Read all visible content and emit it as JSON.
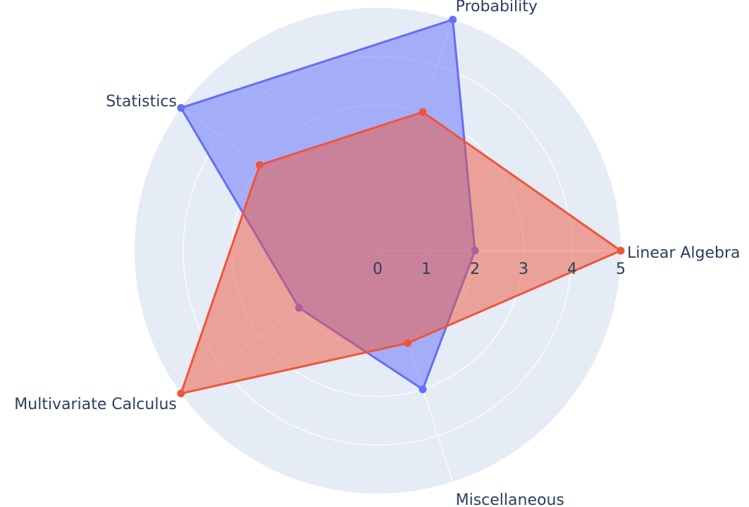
{
  "chart_data": {
    "type": "radar",
    "categories": [
      "Linear Algebra",
      "Probability",
      "Statistics",
      "Multivariate Calculus",
      "Miscellaneous"
    ],
    "radial_range": [
      0,
      5
    ],
    "radial_ticks": [
      "0",
      "1",
      "2",
      "3",
      "4",
      "5"
    ],
    "grid": true,
    "series": [
      {
        "values": [
          2,
          5,
          5,
          2,
          3
        ],
        "color": "#636efa"
      },
      {
        "values": [
          5,
          3,
          3,
          5,
          2
        ],
        "color": "#ef553b"
      }
    ],
    "colors": {
      "polar_bg": "#e5ecf6",
      "grid": "#ffffff",
      "text": "#2a3f5f"
    }
  }
}
